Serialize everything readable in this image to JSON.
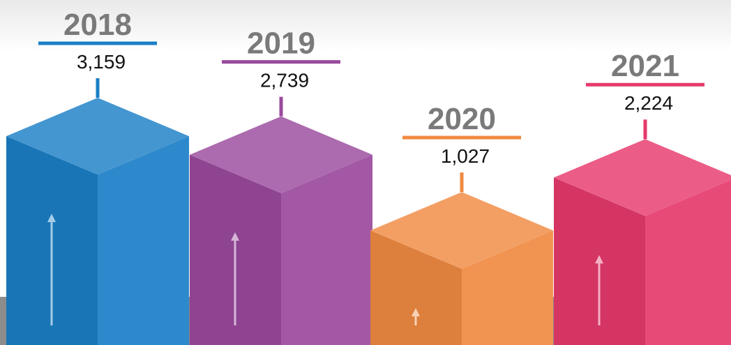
{
  "chart_data": {
    "type": "bar",
    "categories": [
      "2018",
      "2019",
      "2020",
      "2021"
    ],
    "values": [
      3159,
      2739,
      1027,
      2224
    ],
    "value_labels": [
      "3,159",
      "2,739",
      "1,027",
      "2,224"
    ],
    "colors": [
      "#1b7fc6",
      "#9a4a9c",
      "#f08a42",
      "#e63a6c"
    ]
  }
}
